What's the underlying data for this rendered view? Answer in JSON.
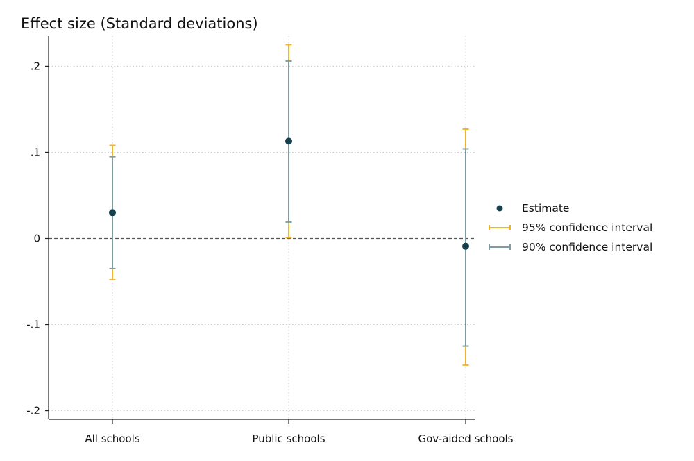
{
  "chart_data": {
    "type": "scatter",
    "title": "Effect size (Standard deviations)",
    "xlabel": "",
    "ylabel": "",
    "categories": [
      "All schools",
      "Public schools",
      "Gov-aided schools"
    ],
    "ylim": [
      -0.21,
      0.235
    ],
    "y_ticks": [
      {
        "value": 0.2,
        "label": ".2"
      },
      {
        "value": 0.1,
        "label": ".1"
      },
      {
        "value": 0,
        "label": "0"
      },
      {
        "value": -0.1,
        "label": "-.1"
      },
      {
        "value": -0.2,
        "label": "-.2"
      }
    ],
    "grid": true,
    "reference_line": 0,
    "legend_position": "right",
    "series": [
      {
        "name": "Estimate",
        "kind": "point",
        "color": "#17404f",
        "values": [
          0.03,
          0.113,
          -0.009
        ]
      },
      {
        "name": "95% confidence interval",
        "kind": "interval",
        "color": "#f0b232",
        "lower": [
          -0.048,
          0.001,
          -0.147
        ],
        "upper": [
          0.108,
          0.225,
          0.127
        ]
      },
      {
        "name": "90% confidence interval",
        "kind": "interval",
        "color": "#7f9da1",
        "lower": [
          -0.035,
          0.019,
          -0.125
        ],
        "upper": [
          0.095,
          0.206,
          0.104
        ]
      }
    ]
  }
}
